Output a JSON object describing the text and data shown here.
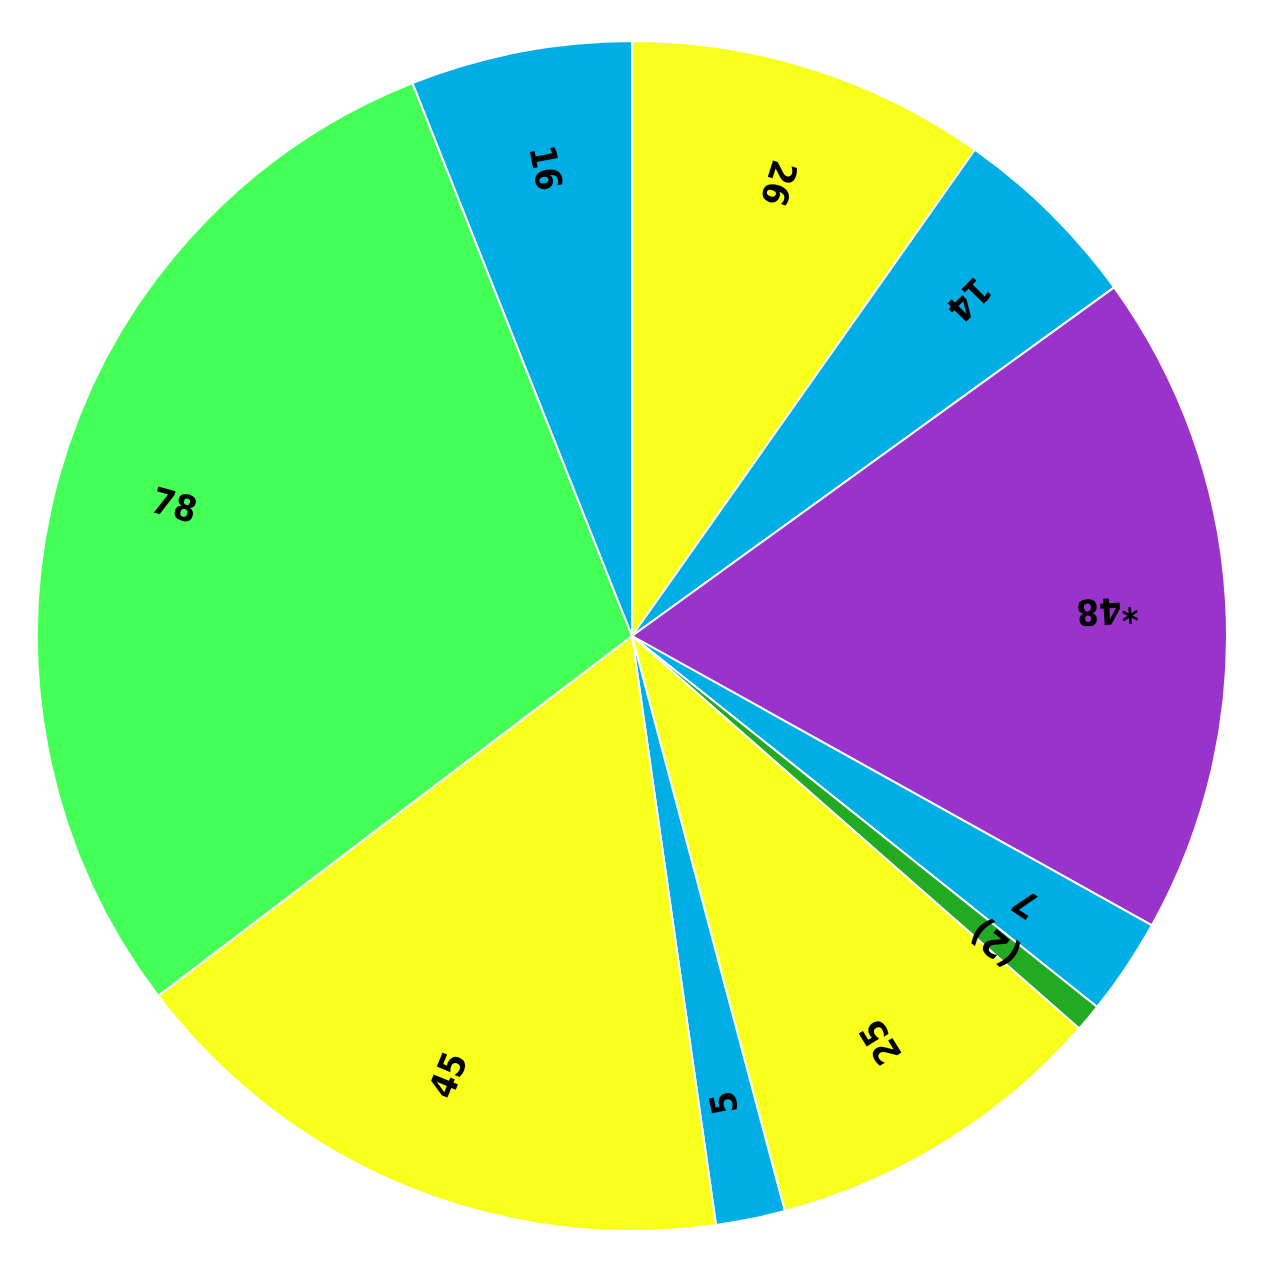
{
  "chart_data": {
    "type": "pie",
    "categories": [
      null,
      null,
      null,
      null,
      null,
      null,
      null,
      null,
      null,
      null
    ],
    "values": [
      26,
      14,
      48,
      7,
      2,
      25,
      5,
      45,
      78,
      16
    ],
    "value_labels": [
      "26",
      "14",
      "*48",
      "7",
      "(2)",
      "25",
      "5",
      "45",
      "78",
      "16"
    ],
    "colors": [
      "#f7ff1a",
      "#00aee6",
      "#9933cc",
      "#00aee6",
      "#22aa22",
      "#f7ff1a",
      "#00aee6",
      "#f7ff1a",
      "#44ff55",
      "#00aee6"
    ]
  }
}
